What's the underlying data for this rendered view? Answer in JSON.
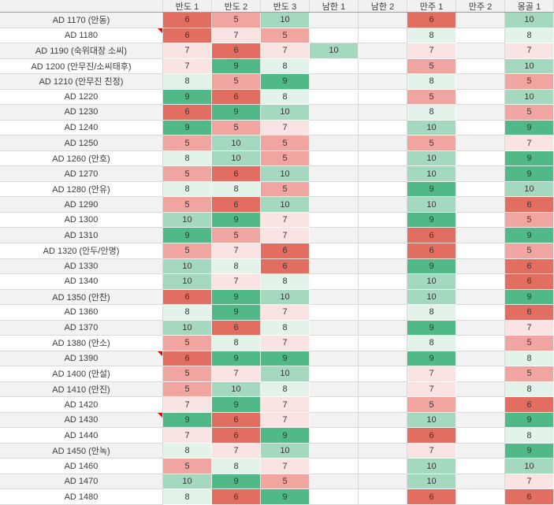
{
  "sheet": {
    "columns": [
      "반도 1",
      "반도 2",
      "반도 3",
      "남한 1",
      "남한 2",
      "만주 1",
      "만주 2",
      "몽골 1"
    ],
    "rows": [
      {
        "label": "AD 1170 (안동)",
        "values": [
          6,
          5,
          10,
          null,
          null,
          6,
          null,
          10
        ],
        "comment": false
      },
      {
        "label": "AD 1180",
        "values": [
          6,
          7,
          5,
          null,
          null,
          8,
          null,
          8
        ],
        "comment": true
      },
      {
        "label": "AD 1190 (숙위대장 소씨)",
        "values": [
          7,
          6,
          7,
          10,
          null,
          7,
          null,
          7
        ],
        "comment": false
      },
      {
        "label": "AD 1200 (안무진/소씨태후)",
        "values": [
          7,
          9,
          8,
          null,
          null,
          5,
          null,
          10
        ],
        "comment": false
      },
      {
        "label": "AD 1210 (안무진 친정)",
        "values": [
          8,
          5,
          9,
          null,
          null,
          8,
          null,
          5
        ],
        "comment": false
      },
      {
        "label": "AD 1220",
        "values": [
          9,
          6,
          8,
          null,
          null,
          5,
          null,
          10
        ],
        "comment": false
      },
      {
        "label": "AD 1230",
        "values": [
          6,
          9,
          10,
          null,
          null,
          8,
          null,
          5
        ],
        "comment": false
      },
      {
        "label": "AD 1240",
        "values": [
          9,
          5,
          7,
          null,
          null,
          10,
          null,
          9
        ],
        "comment": false
      },
      {
        "label": "AD 1250",
        "values": [
          5,
          10,
          5,
          null,
          null,
          5,
          null,
          7
        ],
        "comment": false
      },
      {
        "label": "AD 1260 (안호)",
        "values": [
          8,
          10,
          5,
          null,
          null,
          10,
          null,
          9
        ],
        "comment": false
      },
      {
        "label": "AD 1270",
        "values": [
          5,
          6,
          10,
          null,
          null,
          10,
          null,
          9
        ],
        "comment": false
      },
      {
        "label": "AD 1280 (안유)",
        "values": [
          8,
          8,
          5,
          null,
          null,
          9,
          null,
          10
        ],
        "comment": false
      },
      {
        "label": "AD 1290",
        "values": [
          5,
          6,
          10,
          null,
          null,
          10,
          null,
          6
        ],
        "comment": false
      },
      {
        "label": "AD 1300",
        "values": [
          10,
          9,
          7,
          null,
          null,
          9,
          null,
          5
        ],
        "comment": false
      },
      {
        "label": "AD 1310",
        "values": [
          9,
          5,
          7,
          null,
          null,
          6,
          null,
          9
        ],
        "comment": false
      },
      {
        "label": "AD 1320 (안두/안명)",
        "values": [
          5,
          7,
          6,
          null,
          null,
          6,
          null,
          5
        ],
        "comment": false
      },
      {
        "label": "AD 1330",
        "values": [
          10,
          8,
          6,
          null,
          null,
          9,
          null,
          6
        ],
        "comment": false
      },
      {
        "label": "AD 1340",
        "values": [
          10,
          7,
          8,
          null,
          null,
          10,
          null,
          6
        ],
        "comment": false
      },
      {
        "label": "AD 1350 (안찬)",
        "values": [
          6,
          9,
          10,
          null,
          null,
          10,
          null,
          9
        ],
        "comment": false
      },
      {
        "label": "AD 1360",
        "values": [
          8,
          9,
          7,
          null,
          null,
          8,
          null,
          6
        ],
        "comment": false
      },
      {
        "label": "AD 1370",
        "values": [
          10,
          6,
          8,
          null,
          null,
          9,
          null,
          7
        ],
        "comment": false
      },
      {
        "label": "AD 1380 (안소)",
        "values": [
          5,
          8,
          7,
          null,
          null,
          8,
          null,
          5
        ],
        "comment": false
      },
      {
        "label": "AD 1390",
        "values": [
          6,
          9,
          9,
          null,
          null,
          9,
          null,
          8
        ],
        "comment": true
      },
      {
        "label": "AD 1400 (안설)",
        "values": [
          5,
          7,
          10,
          null,
          null,
          7,
          null,
          5
        ],
        "comment": false
      },
      {
        "label": "AD 1410 (안진)",
        "values": [
          5,
          10,
          8,
          null,
          null,
          7,
          null,
          8
        ],
        "comment": false
      },
      {
        "label": "AD 1420",
        "values": [
          7,
          9,
          7,
          null,
          null,
          5,
          null,
          6
        ],
        "comment": false
      },
      {
        "label": "AD 1430",
        "values": [
          9,
          6,
          7,
          null,
          null,
          10,
          null,
          9
        ],
        "comment": true
      },
      {
        "label": "AD 1440",
        "values": [
          7,
          6,
          9,
          null,
          null,
          6,
          null,
          8
        ],
        "comment": false
      },
      {
        "label": "AD 1450 (안녹)",
        "values": [
          8,
          7,
          10,
          null,
          null,
          7,
          null,
          9
        ],
        "comment": false
      },
      {
        "label": "AD 1460",
        "values": [
          5,
          8,
          7,
          null,
          null,
          10,
          null,
          10
        ],
        "comment": false
      },
      {
        "label": "AD 1470",
        "values": [
          10,
          9,
          5,
          null,
          null,
          10,
          null,
          7
        ],
        "comment": false
      },
      {
        "label": "AD 1480",
        "values": [
          8,
          6,
          9,
          null,
          null,
          6,
          null,
          6
        ],
        "comment": false
      }
    ]
  },
  "colors": {
    "value_scale": {
      "5": "#f0a5a1",
      "6": "#e26e62",
      "7": "#fae4e3",
      "8": "#e3f3ea",
      "9": "#50b987",
      "10": "#a4d9bf"
    },
    "band_odd": "#f2f2f2",
    "band_even": "#ffffff",
    "gridline": "#d9d9d9",
    "header_bg": "#f1f1f1",
    "header_border": "#9e9e9e",
    "comment_flag": "#e60000",
    "text": "#3b3b3b"
  }
}
